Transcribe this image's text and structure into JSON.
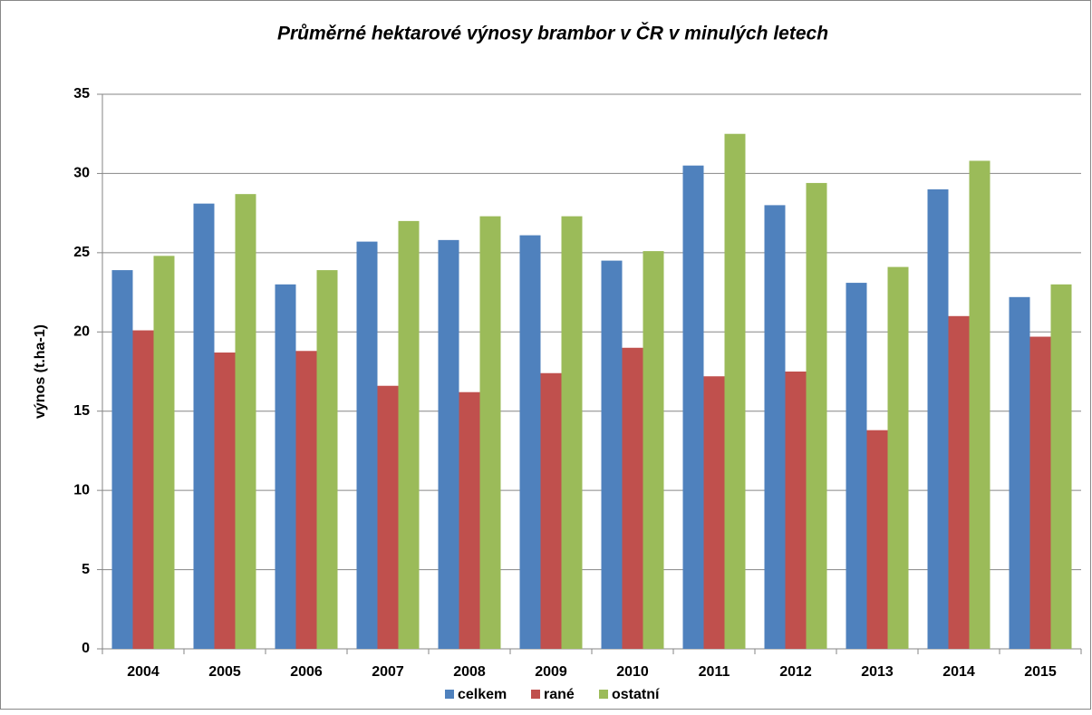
{
  "chart_data": {
    "type": "bar",
    "title": "Průměrné hektarové výnosy brambor v ČR v minulých letech",
    "y_label": "výnos (t.ha-1)",
    "categories": [
      "2004",
      "2005",
      "2006",
      "2007",
      "2008",
      "2009",
      "2010",
      "2011",
      "2012",
      "2013",
      "2014",
      "2015"
    ],
    "series": [
      {
        "name": "celkem",
        "color": "#4f81bd",
        "values": [
          23.9,
          28.1,
          23.0,
          25.7,
          25.8,
          26.1,
          24.5,
          30.5,
          28.0,
          23.1,
          29.0,
          22.2
        ]
      },
      {
        "name": "rané",
        "color": "#c0504d",
        "values": [
          20.1,
          18.7,
          18.8,
          16.6,
          16.2,
          17.4,
          19.0,
          17.2,
          17.5,
          13.8,
          21.0,
          19.7
        ]
      },
      {
        "name": "ostatní",
        "color": "#9bbb59",
        "values": [
          24.8,
          28.7,
          23.9,
          27.0,
          27.3,
          27.3,
          25.1,
          32.5,
          29.4,
          24.1,
          30.8,
          23.0
        ]
      }
    ],
    "ylim": [
      0,
      35
    ],
    "yticks": [
      0,
      5,
      10,
      15,
      20,
      25,
      30,
      35
    ],
    "grid": true,
    "legend": "bottom"
  }
}
